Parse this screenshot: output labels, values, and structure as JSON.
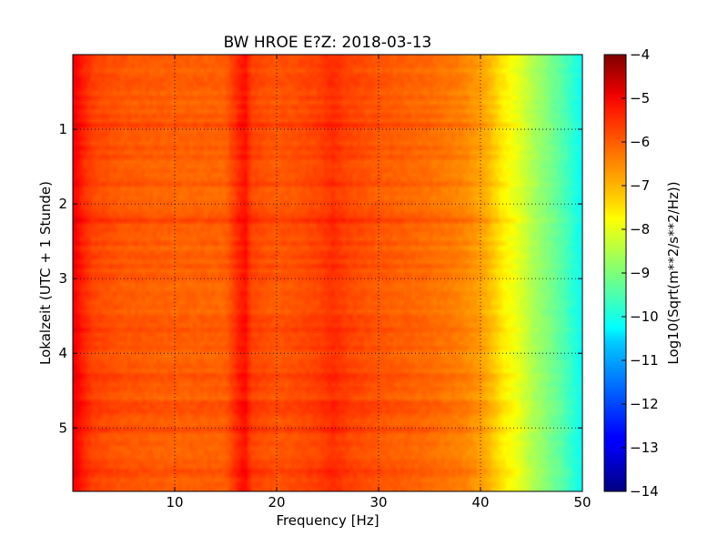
{
  "chart_data": {
    "type": "heatmap",
    "title": "BW HROE E?Z: 2018-03-13",
    "xlabel": "Frequency [Hz]",
    "ylabel": "Lokalzeit (UTC + 1 Stunde)",
    "xlim": [
      0,
      50
    ],
    "ylim": [
      5.85,
      0
    ],
    "x_ticks": [
      10,
      20,
      30,
      40,
      50
    ],
    "y_ticks": [
      1,
      2,
      3,
      4,
      5
    ],
    "grid": true,
    "colorbar": {
      "label": "Log10(Sqrt(m**2/s**2/Hz))",
      "min": -14,
      "max": -4,
      "ticks": [
        -4,
        -5,
        -6,
        -7,
        -8,
        -9,
        -10,
        -11,
        -12,
        -13,
        -14
      ],
      "colormap": "jet"
    },
    "frequency_profile": {
      "frequency_hz": [
        0,
        0.5,
        1,
        2,
        5,
        10,
        15,
        16.5,
        17,
        17.5,
        20,
        24,
        25.5,
        27,
        30,
        35,
        38,
        40,
        41,
        42,
        43,
        44,
        45,
        46,
        47,
        48,
        49,
        50
      ],
      "level": [
        -5.1,
        -5.3,
        -5.6,
        -5.9,
        -6.1,
        -6.2,
        -6.2,
        -5.5,
        -5.4,
        -5.9,
        -6.1,
        -5.9,
        -5.7,
        -5.9,
        -6.1,
        -6.3,
        -6.5,
        -6.8,
        -7.1,
        -7.5,
        -7.8,
        -8.1,
        -8.5,
        -8.8,
        -9.1,
        -9.4,
        -9.8,
        -10.2
      ]
    }
  }
}
